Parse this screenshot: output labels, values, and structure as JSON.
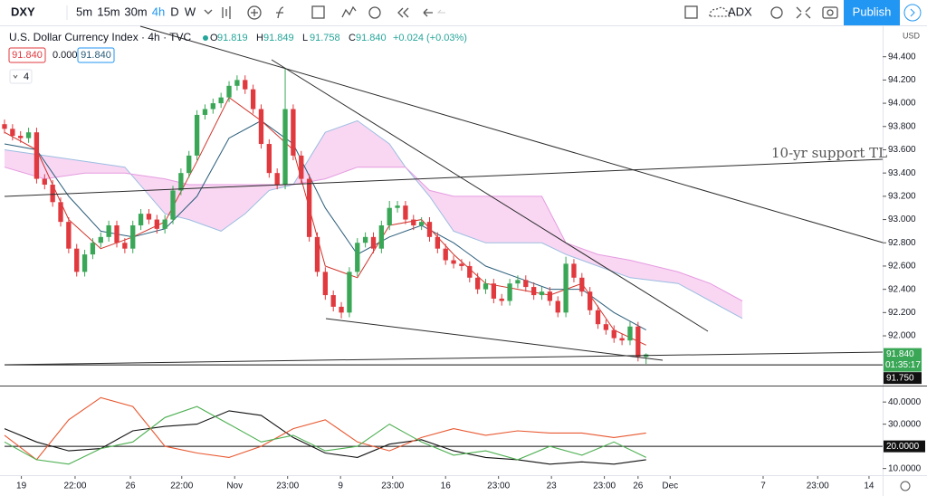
{
  "toolbar": {
    "symbol": "DXY",
    "intervals": [
      "5m",
      "15m",
      "30m",
      "4h",
      "D",
      "W"
    ],
    "indicator": "ADX",
    "publish": "Publish"
  },
  "legend": {
    "title": "U.S. Dollar Currency Index · 4h · TVC",
    "ohlc": [
      {
        "label": "O",
        "value": "91.819"
      },
      {
        "label": "H",
        "value": "91.849"
      },
      {
        "label": "L",
        "value": "91.758"
      },
      {
        "label": "C",
        "value": "91.840"
      }
    ],
    "change": "+0.024 (+0.03%)",
    "boxes": [
      "91.840",
      "0.000",
      "91.840"
    ],
    "count": "4"
  },
  "chart_data": [
    {
      "type": "candlestick",
      "currency": "USD",
      "up_color": "#3aa757",
      "down_color": "#e0393e",
      "xlim": [
        0,
        109.5
      ],
      "ylim": [
        91.58,
        94.67
      ],
      "yticks": [
        {
          "value": 94.4,
          "label": "94.400"
        },
        {
          "value": 94.2,
          "label": "94.200"
        },
        {
          "value": 94.0,
          "label": "94.000"
        },
        {
          "value": 93.8,
          "label": "93.800"
        },
        {
          "value": 93.6,
          "label": "93.600"
        },
        {
          "value": 93.4,
          "label": "93.400"
        },
        {
          "value": 93.2,
          "label": "93.200"
        },
        {
          "value": 93.0,
          "label": "93.000"
        },
        {
          "value": 92.8,
          "label": "92.800"
        },
        {
          "value": 92.6,
          "label": "92.600"
        },
        {
          "value": 92.4,
          "label": "92.400"
        },
        {
          "value": 92.2,
          "label": "92.200"
        },
        {
          "value": 92.0,
          "label": "92.000"
        }
      ],
      "xticks": [
        {
          "value": 2.1,
          "label": "19"
        },
        {
          "value": 8.8,
          "label": "22:00"
        },
        {
          "value": 15.7,
          "label": "26"
        },
        {
          "value": 22.1,
          "label": "22:00"
        },
        {
          "value": 28.7,
          "label": "Nov"
        },
        {
          "value": 35.3,
          "label": "23:00"
        },
        {
          "value": 41.9,
          "label": "9"
        },
        {
          "value": 48.4,
          "label": "23:00"
        },
        {
          "value": 55,
          "label": "16"
        },
        {
          "value": 61.6,
          "label": "23:00"
        },
        {
          "value": 68.2,
          "label": "23"
        },
        {
          "value": 74.8,
          "label": "23:00"
        },
        {
          "value": 79,
          "label": "26"
        },
        {
          "value": 83,
          "label": "Dec"
        },
        {
          "value": 94.6,
          "label": "7"
        },
        {
          "value": 101.4,
          "label": "23:00"
        },
        {
          "value": 107.8,
          "label": "14"
        }
      ],
      "open": [
        93.82,
        93.78,
        93.72,
        93.7,
        93.75,
        93.35,
        93.3,
        93.15,
        92.98,
        92.75,
        92.55,
        92.7,
        92.8,
        92.85,
        92.95,
        92.8,
        92.75,
        92.95,
        93.05,
        93.0,
        92.92,
        93.0,
        93.25,
        93.4,
        93.55,
        93.9,
        93.95,
        94.0,
        94.05,
        94.15,
        94.2,
        94.12,
        93.95,
        93.65,
        93.4,
        93.3,
        93.95,
        93.55,
        93.35,
        92.85,
        92.55,
        92.35,
        92.25,
        92.2,
        92.55,
        92.8,
        92.85,
        92.75,
        92.95,
        93.1,
        93.12,
        93.0,
        92.95,
        92.98,
        92.85,
        92.75,
        92.65,
        92.62,
        92.6,
        92.5,
        92.4,
        92.45,
        92.32,
        92.3,
        92.45,
        92.48,
        92.42,
        92.35,
        92.38,
        92.3,
        92.2,
        92.62,
        92.5,
        92.38,
        92.22,
        92.1,
        92.05,
        91.98,
        91.96,
        92.08,
        91.819
      ],
      "high": [
        93.86,
        93.82,
        93.76,
        93.79,
        93.79,
        93.39,
        93.34,
        93.19,
        93.02,
        92.79,
        92.74,
        92.84,
        92.89,
        92.99,
        92.99,
        92.84,
        92.99,
        93.09,
        93.09,
        93.04,
        93.04,
        93.29,
        93.44,
        93.59,
        93.94,
        93.99,
        94.04,
        94.09,
        94.19,
        94.24,
        94.24,
        94.16,
        93.99,
        93.69,
        93.44,
        94.3,
        93.99,
        93.59,
        93.39,
        92.89,
        92.59,
        92.39,
        92.29,
        92.59,
        92.84,
        92.89,
        92.89,
        92.99,
        93.16,
        93.16,
        93.16,
        93.04,
        93.02,
        93.02,
        92.89,
        92.79,
        92.69,
        92.66,
        92.64,
        92.54,
        92.49,
        92.49,
        92.36,
        92.49,
        92.52,
        92.52,
        92.46,
        92.42,
        92.42,
        92.34,
        92.68,
        92.66,
        92.54,
        92.42,
        92.26,
        92.14,
        92.09,
        92.02,
        92.12,
        92.12,
        91.849
      ],
      "low": [
        93.74,
        93.68,
        93.66,
        93.66,
        93.31,
        93.26,
        93.11,
        92.94,
        92.71,
        92.51,
        92.51,
        92.66,
        92.76,
        92.81,
        92.76,
        92.71,
        92.71,
        92.91,
        92.96,
        92.88,
        92.88,
        92.96,
        93.21,
        93.36,
        93.51,
        93.86,
        93.91,
        93.96,
        94.01,
        94.11,
        94.08,
        93.91,
        93.61,
        93.36,
        93.26,
        93.26,
        93.51,
        93.31,
        92.81,
        92.51,
        92.31,
        92.21,
        92.15,
        92.16,
        92.51,
        92.76,
        92.71,
        92.71,
        92.91,
        93.06,
        92.96,
        92.91,
        92.91,
        92.81,
        92.71,
        92.61,
        92.58,
        92.56,
        92.46,
        92.36,
        92.36,
        92.28,
        92.26,
        92.26,
        92.41,
        92.38,
        92.31,
        92.31,
        92.26,
        92.16,
        92.16,
        92.46,
        92.34,
        92.18,
        92.06,
        92.01,
        91.94,
        91.92,
        91.92,
        91.78,
        91.758
      ],
      "close": [
        93.78,
        93.72,
        93.7,
        93.75,
        93.35,
        93.3,
        93.15,
        92.98,
        92.75,
        92.55,
        92.7,
        92.8,
        92.85,
        92.95,
        92.8,
        92.75,
        92.95,
        93.05,
        93.0,
        92.92,
        93.0,
        93.25,
        93.4,
        93.55,
        93.9,
        93.95,
        94.0,
        94.05,
        94.15,
        94.2,
        94.12,
        93.95,
        93.65,
        93.4,
        93.3,
        93.95,
        93.55,
        93.35,
        92.85,
        92.55,
        92.35,
        92.25,
        92.2,
        92.55,
        92.8,
        92.85,
        92.75,
        92.95,
        93.1,
        93.12,
        93.0,
        92.95,
        92.98,
        92.85,
        92.75,
        92.65,
        92.62,
        92.6,
        92.5,
        92.4,
        92.45,
        92.32,
        92.3,
        92.45,
        92.48,
        92.42,
        92.35,
        92.38,
        92.3,
        92.2,
        92.62,
        92.5,
        92.38,
        92.22,
        92.1,
        92.05,
        91.98,
        91.96,
        92.08,
        91.82,
        91.84
      ],
      "cloud": {
        "x": [
          0,
          5,
          10,
          15,
          20,
          23,
          27,
          30,
          33,
          36,
          40,
          44,
          48,
          50,
          53,
          56,
          60,
          67,
          70,
          74,
          78,
          84,
          88,
          92
        ],
        "span_a": [
          93.6,
          93.55,
          93.5,
          93.45,
          93.05,
          93.0,
          92.9,
          93.05,
          93.25,
          93.3,
          93.75,
          93.85,
          93.65,
          93.45,
          93.2,
          92.9,
          92.8,
          92.8,
          92.7,
          92.6,
          92.5,
          92.45,
          92.3,
          92.15
        ],
        "span_b": [
          93.45,
          93.35,
          93.4,
          93.4,
          93.35,
          93.3,
          93.3,
          93.3,
          93.3,
          93.3,
          93.35,
          93.45,
          93.45,
          93.45,
          93.25,
          93.2,
          93.2,
          93.2,
          92.8,
          92.7,
          92.65,
          92.55,
          92.45,
          92.3
        ],
        "colors": [
          "#f7c6ee",
          "#cfe0f3"
        ]
      },
      "lines": {
        "x": [
          0,
          4,
          8,
          12,
          16,
          20,
          24,
          28,
          32,
          36,
          40,
          44,
          48,
          52,
          56,
          60,
          64,
          68,
          72,
          76,
          80
        ],
        "series": [
          {
            "color": "#2a5d7a",
            "values": [
              93.65,
              93.6,
              93.2,
              92.9,
              92.85,
              92.92,
              93.2,
              93.7,
              93.85,
              93.65,
              93.1,
              92.7,
              92.85,
              92.95,
              92.8,
              92.6,
              92.5,
              92.4,
              92.4,
              92.2,
              92.05
            ]
          },
          {
            "color": "#d0342c",
            "values": [
              93.75,
              93.6,
              93.0,
              92.75,
              92.85,
              92.98,
              93.5,
              94.05,
              93.85,
              93.6,
              92.6,
              92.5,
              92.95,
              93.0,
              92.7,
              92.45,
              92.4,
              92.35,
              92.45,
              92.05,
              91.92
            ]
          }
        ]
      },
      "hline": {
        "value": 91.75,
        "label": "91.750"
      },
      "last": {
        "value": 91.84,
        "label": "91.840",
        "countdown": "01:35:17"
      },
      "annotation": "10-yr support TL"
    },
    {
      "type": "line",
      "xlim": [
        0,
        109.5
      ],
      "ylim": [
        7,
        47
      ],
      "x": [
        0,
        4,
        8,
        12,
        16,
        20,
        24,
        28,
        32,
        36,
        40,
        44,
        48,
        52,
        56,
        60,
        64,
        68,
        72,
        76,
        80
      ],
      "yticks": [
        {
          "value": 40,
          "label": "40.0000"
        },
        {
          "value": 30,
          "label": "30.0000"
        },
        {
          "value": 10,
          "label": "10.0000"
        }
      ],
      "hline": {
        "value": 20,
        "label": "20.0000"
      },
      "series": [
        {
          "color": "#111111",
          "values": [
            28,
            22,
            18,
            19,
            27,
            29,
            30,
            36,
            34,
            24,
            17,
            15,
            21,
            23,
            18,
            15,
            14,
            12,
            13,
            12,
            14
          ]
        },
        {
          "color": "#e8572f",
          "values": [
            25,
            14,
            32,
            42,
            38,
            20,
            17,
            15,
            20,
            28,
            32,
            22,
            18,
            24,
            28,
            25,
            27,
            26,
            26,
            24,
            26
          ]
        },
        {
          "color": "#4caf50",
          "values": [
            22,
            14,
            12,
            19,
            22,
            33,
            38,
            30,
            22,
            25,
            18,
            20,
            30,
            22,
            16,
            18,
            14,
            20,
            16,
            22,
            15
          ]
        }
      ]
    }
  ]
}
